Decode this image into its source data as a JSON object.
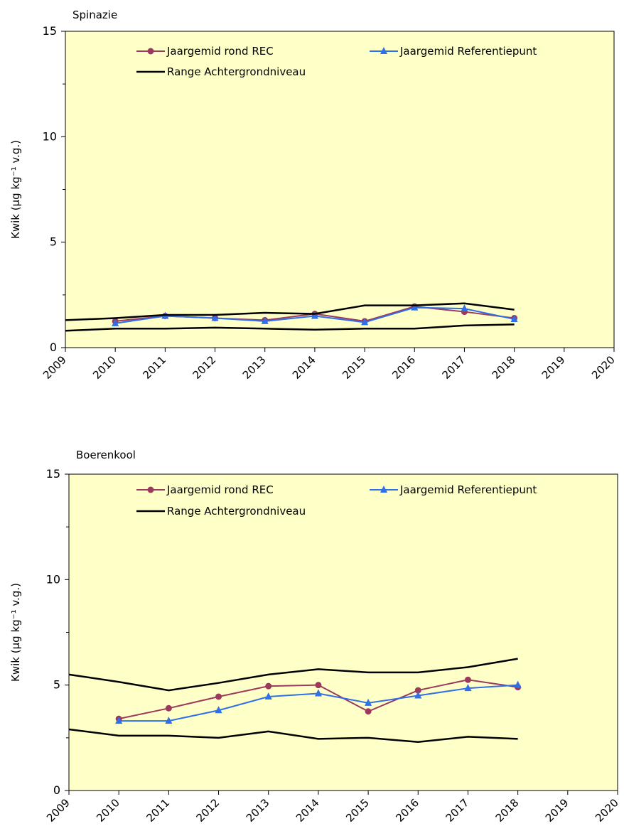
{
  "chart_data": [
    {
      "type": "line",
      "title": "Spinazie",
      "ylabel": "Kwik (µg kg⁻¹ v.g.)",
      "xlabel": "",
      "x_ticks": [
        "2009",
        "2010",
        "2011",
        "2012",
        "2013",
        "2014",
        "2015",
        "2016",
        "2017",
        "2018",
        "2019",
        "2020"
      ],
      "xlim": [
        2009,
        2020
      ],
      "ylim": [
        0,
        15
      ],
      "y_ticks": [
        0,
        5,
        10,
        15
      ],
      "background": "#ffffc8",
      "legend": [
        "Jaargemid rond REC",
        "Jaargemid Referentiepunt",
        "Range Achtergrondniveau"
      ],
      "series": [
        {
          "name": "Jaargemid rond REC",
          "color": "#9b3a5e",
          "marker": "circle",
          "x": [
            2010,
            2011,
            2012,
            2013,
            2014,
            2015,
            2016,
            2017,
            2018
          ],
          "y": [
            1.25,
            1.5,
            1.4,
            1.3,
            1.6,
            1.25,
            1.95,
            1.7,
            1.4
          ]
        },
        {
          "name": "Jaargemid Referentiepunt",
          "color": "#2f6fe8",
          "marker": "triangle",
          "x": [
            2010,
            2011,
            2012,
            2013,
            2014,
            2015,
            2016,
            2017,
            2018
          ],
          "y": [
            1.15,
            1.5,
            1.4,
            1.25,
            1.5,
            1.2,
            1.9,
            1.85,
            1.35
          ]
        },
        {
          "name": "Range Achtergrondniveau",
          "color": "#000000",
          "marker": "none",
          "x": [
            2009,
            2010,
            2011,
            2012,
            2013,
            2014,
            2015,
            2016,
            2017,
            2018
          ],
          "y": [
            1.3,
            1.4,
            1.55,
            1.55,
            1.65,
            1.6,
            2.0,
            2.0,
            2.1,
            1.8
          ]
        },
        {
          "name": "Range Achtergrondniveau",
          "color": "#000000",
          "marker": "none",
          "legend": false,
          "x": [
            2009,
            2010,
            2011,
            2012,
            2013,
            2014,
            2015,
            2016,
            2017,
            2018
          ],
          "y": [
            0.8,
            0.9,
            0.9,
            0.95,
            0.9,
            0.85,
            0.9,
            0.9,
            1.05,
            1.1
          ]
        }
      ]
    },
    {
      "type": "line",
      "title": "Boerenkool",
      "ylabel": "Kwik (µg kg⁻¹ v.g.)",
      "xlabel": "",
      "x_ticks": [
        "2009",
        "2010",
        "2011",
        "2012",
        "2013",
        "2014",
        "2015",
        "2016",
        "2017",
        "2018",
        "2019",
        "2020"
      ],
      "xlim": [
        2009,
        2020
      ],
      "ylim": [
        0,
        15
      ],
      "y_ticks": [
        0,
        5,
        10,
        15
      ],
      "background": "#ffffc8",
      "legend": [
        "Jaargemid rond REC",
        "Jaargemid Referentiepunt",
        "Range Achtergrondniveau"
      ],
      "series": [
        {
          "name": "Jaargemid rond REC",
          "color": "#9b3a5e",
          "marker": "circle",
          "x": [
            2010,
            2011,
            2012,
            2013,
            2014,
            2015,
            2016,
            2017,
            2018
          ],
          "y": [
            3.4,
            3.9,
            4.45,
            4.95,
            5.0,
            3.75,
            4.75,
            5.25,
            4.9
          ]
        },
        {
          "name": "Jaargemid Referentiepunt",
          "color": "#2f6fe8",
          "marker": "triangle",
          "x": [
            2010,
            2011,
            2012,
            2013,
            2014,
            2015,
            2016,
            2017,
            2018
          ],
          "y": [
            3.3,
            3.3,
            3.8,
            4.45,
            4.6,
            4.15,
            4.5,
            4.85,
            5.0
          ]
        },
        {
          "name": "Range Achtergrondniveau",
          "color": "#000000",
          "marker": "none",
          "x": [
            2009,
            2010,
            2011,
            2012,
            2013,
            2014,
            2015,
            2016,
            2017,
            2018
          ],
          "y": [
            5.5,
            5.15,
            4.75,
            5.1,
            5.5,
            5.75,
            5.6,
            5.6,
            5.85,
            6.25
          ]
        },
        {
          "name": "Range Achtergrondniveau",
          "color": "#000000",
          "marker": "none",
          "legend": false,
          "x": [
            2009,
            2010,
            2011,
            2012,
            2013,
            2014,
            2015,
            2016,
            2017,
            2018
          ],
          "y": [
            2.9,
            2.6,
            2.6,
            2.5,
            2.8,
            2.45,
            2.5,
            2.3,
            2.55,
            2.45
          ]
        }
      ]
    }
  ]
}
